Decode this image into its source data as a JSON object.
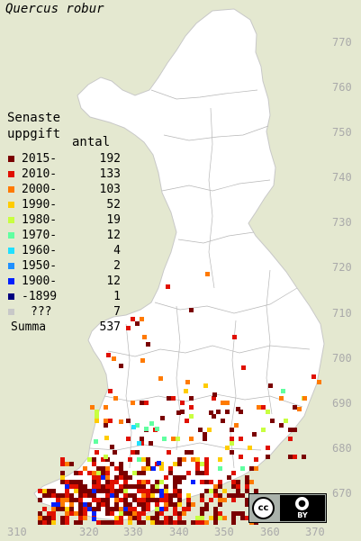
{
  "map": {
    "species": "Quercus robur",
    "y_ticks": [
      "770",
      "760",
      "750",
      "740",
      "730",
      "720",
      "710",
      "700",
      "690",
      "680",
      "670"
    ],
    "x_ticks": [
      "310",
      "320",
      "330",
      "340",
      "350",
      "360",
      "370"
    ]
  },
  "legend": {
    "title_line1": "Senaste",
    "title_line2": "uppgift",
    "count_header": "antal",
    "rows": [
      {
        "label": "2015-",
        "count": "192",
        "color": "#7a0000"
      },
      {
        "label": "2010-",
        "count": "133",
        "color": "#e01000"
      },
      {
        "label": "2000-",
        "count": "103",
        "color": "#ff7a00"
      },
      {
        "label": "1990-",
        "count": "52",
        "color": "#ffcc00"
      },
      {
        "label": "1980-",
        "count": "19",
        "color": "#c8ff40"
      },
      {
        "label": "1970-",
        "count": "12",
        "color": "#60ffa0"
      },
      {
        "label": "1960-",
        "count": "4",
        "color": "#20e0ff"
      },
      {
        "label": "1950-",
        "count": "2",
        "color": "#2090ff"
      },
      {
        "label": "1900-",
        "count": "12",
        "color": "#0020ff"
      },
      {
        "label": "-1899",
        "count": "1",
        "color": "#000080"
      },
      {
        "label": "???",
        "count": "7",
        "color": "#c8c8c8"
      }
    ],
    "summa_label": "Summa",
    "summa_value": "537"
  },
  "license": {
    "cc_text": "cc",
    "by_text": "BY",
    "by_icon": "person-icon"
  },
  "colors": {
    "background": "#e4e8d0",
    "land": "#ffffff",
    "grid": "#b0b0b0"
  }
}
